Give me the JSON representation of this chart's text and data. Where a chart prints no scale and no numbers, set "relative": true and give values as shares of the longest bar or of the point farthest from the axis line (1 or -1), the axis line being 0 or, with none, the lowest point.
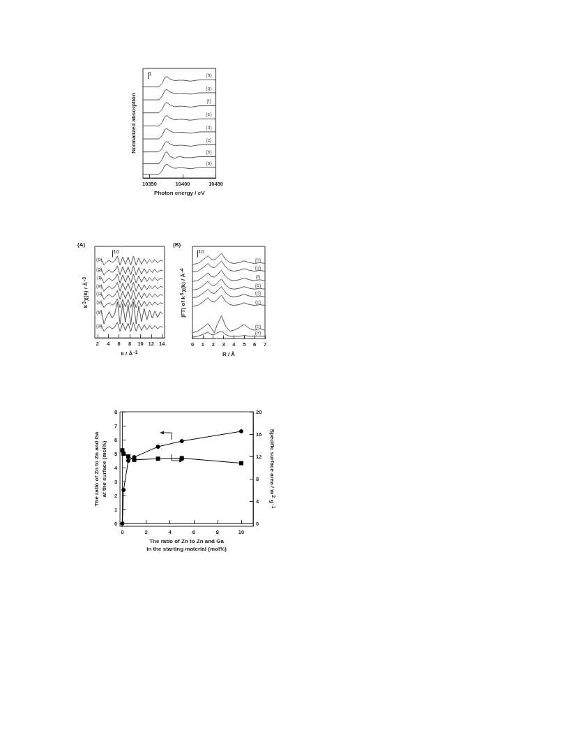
{
  "chart_data": [
    {
      "type": "line",
      "relative": true,
      "xlabel": "Photon energy / eV",
      "ylabel": "Normalized absorption",
      "xlim": [
        10340,
        10450
      ],
      "xticks": [
        10350,
        10400,
        10450
      ],
      "marker": "none",
      "annotations": [
        "1"
      ],
      "x": [
        10340,
        10364,
        10369,
        10373,
        10376,
        10381,
        10388,
        10395,
        10402,
        10412,
        10425,
        10450
      ],
      "series": [
        {
          "name": "(a)",
          "color": "#555555",
          "values": [
            0.035,
            0.035,
            0.07,
            0.126,
            0.137,
            0.112,
            0.095,
            0.101,
            0.099,
            0.091,
            0.104,
            0.105
          ]
        },
        {
          "name": "(b)",
          "color": "#555555",
          "values": [
            0.14,
            0.14,
            0.182,
            0.245,
            0.259,
            0.21,
            0.193,
            0.214,
            0.2,
            0.2,
            0.21,
            0.21
          ]
        },
        {
          "name": "(c)",
          "color": "#555555",
          "values": [
            0.257,
            0.257,
            0.292,
            0.348,
            0.359,
            0.334,
            0.317,
            0.323,
            0.321,
            0.313,
            0.326,
            0.327
          ]
        },
        {
          "name": "(d)",
          "color": "#555555",
          "values": [
            0.385,
            0.385,
            0.42,
            0.476,
            0.487,
            0.462,
            0.445,
            0.451,
            0.449,
            0.441,
            0.454,
            0.455
          ]
        },
        {
          "name": "(e)",
          "color": "#555555",
          "values": [
            0.513,
            0.513,
            0.548,
            0.604,
            0.615,
            0.59,
            0.573,
            0.579,
            0.577,
            0.569,
            0.582,
            0.583
          ]
        },
        {
          "name": "(f)",
          "color": "#555555",
          "values": [
            0.642,
            0.642,
            0.677,
            0.733,
            0.744,
            0.719,
            0.702,
            0.708,
            0.706,
            0.698,
            0.711,
            0.712
          ]
        },
        {
          "name": "(g)",
          "color": "#555555",
          "values": [
            0.77,
            0.77,
            0.805,
            0.861,
            0.872,
            0.847,
            0.83,
            0.836,
            0.834,
            0.826,
            0.839,
            0.84
          ]
        },
        {
          "name": "(h)",
          "color": "#555555",
          "values": [
            0.898,
            0.898,
            0.933,
            0.989,
            1.0,
            0.975,
            0.958,
            0.964,
            0.962,
            0.954,
            0.967,
            0.968
          ]
        }
      ]
    },
    {
      "type": "line",
      "relative": true,
      "title": "(A)",
      "xlabel": "k / Å$^{-1}$",
      "ylabel": "k$^{3}$χ(k) / Å$^{-3}$",
      "xlim": [
        1.5,
        14.5
      ],
      "xticks": [
        2,
        4,
        6,
        8,
        10,
        12,
        14
      ],
      "marker": "none",
      "annotations": [
        "10"
      ],
      "x": [
        2.2,
        2.7,
        3.2,
        3.7,
        4.2,
        4.7,
        5.2,
        5.7,
        6.2,
        6.7,
        7.2,
        7.7,
        8.2,
        8.7,
        9.2,
        9.7,
        10.2,
        10.7,
        11.2,
        11.7,
        12.2,
        12.7,
        13.2,
        13.7,
        14.2
      ],
      "series": [
        {
          "name": "(a)",
          "color": "#555555",
          "values": [
            0.13,
            0.15,
            0.08,
            0.12,
            0.14,
            0.11,
            0.13,
            0.19,
            0.08,
            0.18,
            0.09,
            0.18,
            0.08,
            0.19,
            0.08,
            0.17,
            0.09,
            0.16,
            0.1,
            0.15,
            0.11,
            0.15,
            0.11,
            0.14,
            0.13
          ]
        },
        {
          "name": "(b)",
          "color": "#555555",
          "values": [
            0.29,
            0.34,
            0.17,
            0.26,
            0.32,
            0.24,
            0.29,
            0.44,
            0.17,
            0.42,
            0.19,
            0.41,
            0.16,
            0.44,
            0.17,
            0.39,
            0.2,
            0.36,
            0.22,
            0.34,
            0.24,
            0.33,
            0.25,
            0.32,
            0.29
          ]
        },
        {
          "name": "(c)",
          "color": "#555555",
          "values": [
            0.42,
            0.44,
            0.37,
            0.41,
            0.43,
            0.4,
            0.42,
            0.48,
            0.37,
            0.47,
            0.38,
            0.47,
            0.37,
            0.48,
            0.37,
            0.46,
            0.38,
            0.45,
            0.39,
            0.44,
            0.4,
            0.44,
            0.4,
            0.43,
            0.42
          ]
        },
        {
          "name": "(d)",
          "color": "#555555",
          "values": [
            0.52,
            0.54,
            0.47,
            0.51,
            0.53,
            0.5,
            0.52,
            0.58,
            0.47,
            0.57,
            0.48,
            0.57,
            0.47,
            0.58,
            0.47,
            0.56,
            0.48,
            0.55,
            0.49,
            0.54,
            0.5,
            0.54,
            0.5,
            0.53,
            0.52
          ]
        },
        {
          "name": "(e)",
          "color": "#555555",
          "values": [
            0.62,
            0.64,
            0.57,
            0.61,
            0.63,
            0.6,
            0.62,
            0.68,
            0.57,
            0.67,
            0.58,
            0.67,
            0.57,
            0.68,
            0.57,
            0.66,
            0.58,
            0.65,
            0.59,
            0.64,
            0.6,
            0.64,
            0.6,
            0.63,
            0.62
          ]
        },
        {
          "name": "(f)",
          "color": "#555555",
          "values": [
            0.72,
            0.74,
            0.67,
            0.71,
            0.73,
            0.7,
            0.72,
            0.78,
            0.67,
            0.77,
            0.68,
            0.77,
            0.67,
            0.78,
            0.67,
            0.76,
            0.68,
            0.75,
            0.69,
            0.74,
            0.7,
            0.74,
            0.7,
            0.73,
            0.72
          ]
        },
        {
          "name": "(g)",
          "color": "#555555",
          "values": [
            0.82,
            0.84,
            0.77,
            0.81,
            0.83,
            0.8,
            0.82,
            0.88,
            0.77,
            0.87,
            0.78,
            0.87,
            0.77,
            0.88,
            0.77,
            0.86,
            0.78,
            0.85,
            0.79,
            0.84,
            0.8,
            0.84,
            0.8,
            0.83,
            0.82
          ]
        },
        {
          "name": "(h)",
          "color": "#555555",
          "values": [
            0.94,
            0.96,
            0.89,
            0.93,
            0.95,
            0.92,
            0.94,
            1.0,
            0.89,
            0.99,
            0.9,
            0.99,
            0.89,
            1.0,
            0.89,
            0.98,
            0.9,
            0.97,
            0.91,
            0.96,
            0.92,
            0.96,
            0.92,
            0.95,
            0.94
          ]
        }
      ]
    },
    {
      "type": "line",
      "relative": true,
      "title": "(B)",
      "xlabel": "R / Å",
      "ylabel": "|FT| of k$^{3}$χ(k) / Å$^{-4}$",
      "xlim": [
        0,
        7
      ],
      "xticks": [
        0,
        1,
        2,
        3,
        4,
        5,
        6,
        7
      ],
      "marker": "none",
      "annotations": [
        "10"
      ],
      "x": [
        0,
        0.5,
        1.0,
        1.5,
        1.8,
        2.1,
        2.4,
        2.8,
        3.2,
        3.6,
        4.0,
        4.5,
        5.0,
        5.5,
        6.0,
        6.5,
        7.0
      ],
      "series": [
        {
          "name": "(a)",
          "color": "#555555",
          "values": [
            0.02,
            0.03,
            0.05,
            0.08,
            0.05,
            0.05,
            0.07,
            0.09,
            0.05,
            0.03,
            0.03,
            0.03,
            0.04,
            0.03,
            0.03,
            0.03,
            0.03
          ]
        },
        {
          "name": "(b)",
          "color": "#555555",
          "values": [
            0.07,
            0.09,
            0.13,
            0.18,
            0.13,
            0.07,
            0.17,
            0.27,
            0.15,
            0.09,
            0.1,
            0.13,
            0.17,
            0.12,
            0.1,
            0.12,
            0.1
          ]
        },
        {
          "name": "(c)",
          "color": "#555555",
          "values": [
            0.38,
            0.39,
            0.43,
            0.48,
            0.44,
            0.43,
            0.46,
            0.51,
            0.44,
            0.4,
            0.39,
            0.4,
            0.42,
            0.4,
            0.39,
            0.4,
            0.39
          ]
        },
        {
          "name": "(d)",
          "color": "#555555",
          "values": [
            0.48,
            0.49,
            0.53,
            0.58,
            0.54,
            0.53,
            0.56,
            0.61,
            0.54,
            0.5,
            0.49,
            0.5,
            0.52,
            0.5,
            0.49,
            0.5,
            0.49
          ]
        },
        {
          "name": "(e)",
          "color": "#555555",
          "values": [
            0.57,
            0.58,
            0.62,
            0.67,
            0.63,
            0.62,
            0.65,
            0.7,
            0.63,
            0.59,
            0.58,
            0.59,
            0.61,
            0.59,
            0.58,
            0.59,
            0.58
          ]
        },
        {
          "name": "(f)",
          "color": "#555555",
          "values": [
            0.67,
            0.68,
            0.72,
            0.77,
            0.73,
            0.72,
            0.75,
            0.8,
            0.73,
            0.69,
            0.68,
            0.69,
            0.71,
            0.69,
            0.68,
            0.69,
            0.68
          ]
        },
        {
          "name": "(g)",
          "color": "#555555",
          "values": [
            0.78,
            0.79,
            0.83,
            0.88,
            0.84,
            0.83,
            0.86,
            0.91,
            0.84,
            0.8,
            0.79,
            0.8,
            0.82,
            0.8,
            0.79,
            0.8,
            0.79
          ]
        },
        {
          "name": "(h)",
          "color": "#555555",
          "values": [
            0.87,
            0.88,
            0.92,
            0.97,
            0.93,
            0.92,
            0.95,
            1.0,
            0.93,
            0.89,
            0.88,
            0.89,
            0.91,
            0.89,
            0.88,
            0.89,
            0.88
          ]
        }
      ]
    },
    {
      "type": "line",
      "xlabel": "The ratio of Zn to Zn and Ga\nin the starting material (mol%)",
      "ylabel": "The ratio of Zn to Zn and Ga\nat the surface (mol%)",
      "y2label": "Specific surface area / m$^{2}$ g$^{-1}$",
      "xlim": [
        -0.2,
        11
      ],
      "xticks": [
        0,
        2,
        4,
        6,
        8,
        10
      ],
      "ylim": [
        -0.2,
        8
      ],
      "yticks": [
        0,
        1,
        2,
        3,
        4,
        5,
        6,
        7,
        8
      ],
      "y2lim": [
        -0.5,
        20
      ],
      "y2ticks": [
        0,
        4,
        8,
        12,
        16,
        20
      ],
      "series": [
        {
          "color": "#000000",
          "marker": "circle",
          "x": [
            0,
            0.1,
            0.5,
            1,
            3,
            5,
            10
          ],
          "values": [
            0,
            2.4,
            4.5,
            4.75,
            5.5,
            5.9,
            6.6
          ]
        },
        {
          "color": "#000000",
          "marker": "square",
          "axis": "y2",
          "x": [
            0,
            0.1,
            0.5,
            1,
            3,
            5,
            10
          ],
          "values": [
            13.1,
            12.5,
            12,
            11.4,
            11.6,
            11.7,
            10.8
          ]
        }
      ]
    }
  ]
}
